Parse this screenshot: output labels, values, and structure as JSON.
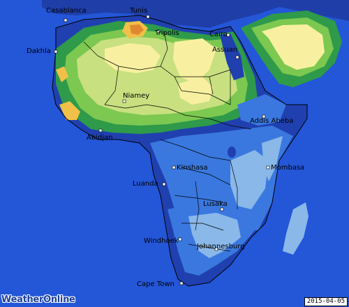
{
  "map": {
    "cities": [
      {
        "id": "casablanca",
        "name": "Casablanca"
      },
      {
        "id": "tunis",
        "name": "Tunis"
      },
      {
        "id": "tripolis",
        "name": "Tripolis"
      },
      {
        "id": "cairo",
        "name": "Cairo"
      },
      {
        "id": "assuan",
        "name": "Assuan"
      },
      {
        "id": "dakhla",
        "name": "Dakhla"
      },
      {
        "id": "niamey",
        "name": "Niamey"
      },
      {
        "id": "addis-abeba",
        "name": "Addis Abeba"
      },
      {
        "id": "abidjan",
        "name": "Abidjan"
      },
      {
        "id": "kinshasa",
        "name": "Kinshasa"
      },
      {
        "id": "mombasa",
        "name": "Mombasa"
      },
      {
        "id": "luanda",
        "name": "Luanda"
      },
      {
        "id": "lusaka",
        "name": "Lusaka"
      },
      {
        "id": "windhoek",
        "name": "Windhoek"
      },
      {
        "id": "johannesburg",
        "name": "Johannesburg"
      },
      {
        "id": "cape-town",
        "name": "Cape Town"
      }
    ],
    "colors": {
      "ocean": "#2456d8",
      "very-wet": "#2040b0",
      "wet": "#3a78e0",
      "moist": "#8ab8e8",
      "moderate": "#2e9a4a",
      "semi-dry": "#7cc850",
      "dry": "#c8e080",
      "arid": "#f8f0a0",
      "very-arid": "#f0c048",
      "extreme": "#e08830"
    }
  },
  "logo": "WeatherOnline",
  "date": "2015-04-05"
}
